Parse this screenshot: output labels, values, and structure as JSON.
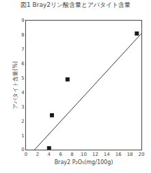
{
  "chart_data": {
    "type": "scatter",
    "title": "図1 Bray2リン酸含量とアパタイト含量",
    "xlabel": "Bray2 P₂O₅(mg/100g)",
    "ylabel": "アパタイト含量(%)",
    "xlim": [
      0,
      20
    ],
    "ylim": [
      0,
      9
    ],
    "xticks": [
      0,
      2,
      4,
      6,
      8,
      10,
      12,
      14,
      16,
      18,
      20
    ],
    "yticks": [
      0,
      1,
      2,
      3,
      4,
      5,
      6,
      7,
      8,
      9
    ],
    "grid": false,
    "series": [
      {
        "type": "line",
        "color": "#333333",
        "line_style": "solid",
        "x": [
          1.5,
          20.0
        ],
        "values": [
          0.0,
          8.1
        ]
      },
      {
        "type": "scatter",
        "color": "#1a1a1a",
        "marker": "square",
        "x": [
          4.0,
          4.5,
          7.2,
          19.2
        ],
        "values": [
          0.1,
          2.4,
          4.9,
          8.1
        ]
      }
    ]
  }
}
